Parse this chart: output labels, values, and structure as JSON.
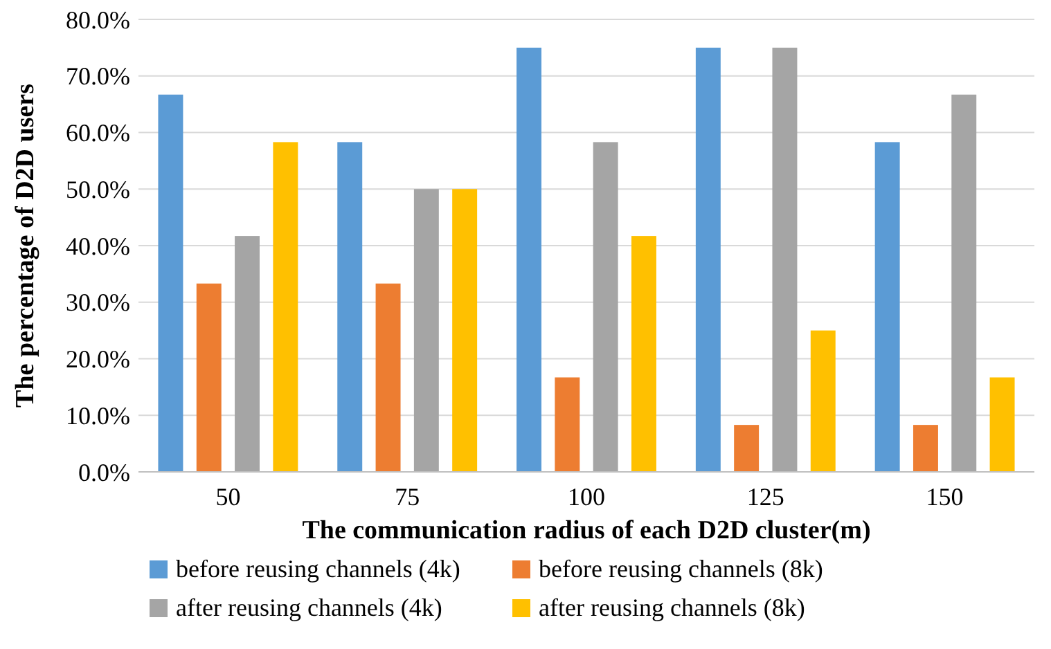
{
  "chart_data": {
    "type": "bar",
    "xlabel": "The communication radius of each D2D cluster(m)",
    "ylabel": "The percentage of D2D users",
    "categories": [
      "50",
      "75",
      "100",
      "125",
      "150"
    ],
    "series": [
      {
        "name": "before reusing channels (4k)",
        "color": "#5b9bd5",
        "values": [
          66.7,
          58.3,
          75,
          75,
          58.3
        ]
      },
      {
        "name": "before reusing channels (8k)",
        "color": "#ed7d31",
        "values": [
          33.3,
          33.3,
          16.7,
          8.3,
          8.3
        ]
      },
      {
        "name": "after reusing channels (4k)",
        "color": "#a5a5a5",
        "values": [
          41.7,
          50,
          58.3,
          75,
          66.7
        ]
      },
      {
        "name": "after reusing channels (8k)",
        "color": "#ffc000",
        "values": [
          58.3,
          50,
          41.7,
          25,
          16.7
        ]
      }
    ],
    "ylim": [
      0,
      80
    ],
    "yticks": [
      {
        "value": 0,
        "label": "0.0%"
      },
      {
        "value": 10,
        "label": "10.0%"
      },
      {
        "value": 20,
        "label": "20.0%"
      },
      {
        "value": 30,
        "label": "30.0%"
      },
      {
        "value": 40,
        "label": "40.0%"
      },
      {
        "value": 50,
        "label": "50.0%"
      },
      {
        "value": 60,
        "label": "60.0%"
      },
      {
        "value": 70,
        "label": "70.0%"
      },
      {
        "value": 80,
        "label": "80.0%"
      }
    ],
    "grid": "y",
    "legend": "bottom"
  }
}
